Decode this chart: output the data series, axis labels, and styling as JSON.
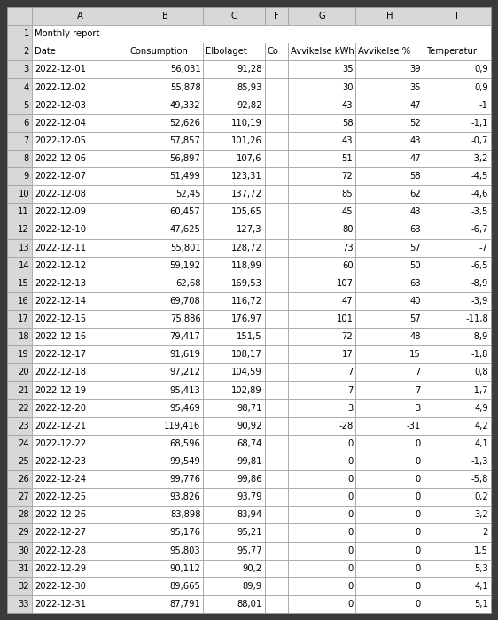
{
  "title": "Monthly report",
  "col_headers": [
    "Date",
    "Consumption",
    "Elbolaget",
    "Co",
    "Avvikelse kWh",
    "Avvikelse %",
    "Temperatur"
  ],
  "col_letters": [
    "A",
    "B",
    "C",
    "F",
    "G",
    "H",
    "I"
  ],
  "rows": [
    [
      "2022-12-01",
      "56,031",
      "91,28",
      "",
      "35",
      "39",
      "0,9"
    ],
    [
      "2022-12-02",
      "55,878",
      "85,93",
      "",
      "30",
      "35",
      "0,9"
    ],
    [
      "2022-12-03",
      "49,332",
      "92,82",
      "",
      "43",
      "47",
      "-1"
    ],
    [
      "2022-12-04",
      "52,626",
      "110,19",
      "",
      "58",
      "52",
      "-1,1"
    ],
    [
      "2022-12-05",
      "57,857",
      "101,26",
      "",
      "43",
      "43",
      "-0,7"
    ],
    [
      "2022-12-06",
      "56,897",
      "107,6",
      "",
      "51",
      "47",
      "-3,2"
    ],
    [
      "2022-12-07",
      "51,499",
      "123,31",
      "",
      "72",
      "58",
      "-4,5"
    ],
    [
      "2022-12-08",
      "52,45",
      "137,72",
      "",
      "85",
      "62",
      "-4,6"
    ],
    [
      "2022-12-09",
      "60,457",
      "105,65",
      "",
      "45",
      "43",
      "-3,5"
    ],
    [
      "2022-12-10",
      "47,625",
      "127,3",
      "",
      "80",
      "63",
      "-6,7"
    ],
    [
      "2022-12-11",
      "55,801",
      "128,72",
      "",
      "73",
      "57",
      "-7"
    ],
    [
      "2022-12-12",
      "59,192",
      "118,99",
      "",
      "60",
      "50",
      "-6,5"
    ],
    [
      "2022-12-13",
      "62,68",
      "169,53",
      "",
      "107",
      "63",
      "-8,9"
    ],
    [
      "2022-12-14",
      "69,708",
      "116,72",
      "",
      "47",
      "40",
      "-3,9"
    ],
    [
      "2022-12-15",
      "75,886",
      "176,97",
      "",
      "101",
      "57",
      "-11,8"
    ],
    [
      "2022-12-16",
      "79,417",
      "151,5",
      "",
      "72",
      "48",
      "-8,9"
    ],
    [
      "2022-12-17",
      "91,619",
      "108,17",
      "",
      "17",
      "15",
      "-1,8"
    ],
    [
      "2022-12-18",
      "97,212",
      "104,59",
      "",
      "7",
      "7",
      "0,8"
    ],
    [
      "2022-12-19",
      "95,413",
      "102,89",
      "",
      "7",
      "7",
      "-1,7"
    ],
    [
      "2022-12-20",
      "95,469",
      "98,71",
      "",
      "3",
      "3",
      "4,9"
    ],
    [
      "2022-12-21",
      "119,416",
      "90,92",
      "",
      "-28",
      "-31",
      "4,2"
    ],
    [
      "2022-12-22",
      "68,596",
      "68,74",
      "",
      "0",
      "0",
      "4,1"
    ],
    [
      "2022-12-23",
      "99,549",
      "99,81",
      "",
      "0",
      "0",
      "-1,3"
    ],
    [
      "2022-12-24",
      "99,776",
      "99,86",
      "",
      "0",
      "0",
      "-5,8"
    ],
    [
      "2022-12-25",
      "93,826",
      "93,79",
      "",
      "0",
      "0",
      "0,2"
    ],
    [
      "2022-12-26",
      "83,898",
      "83,94",
      "",
      "0",
      "0",
      "3,2"
    ],
    [
      "2022-12-27",
      "95,176",
      "95,21",
      "",
      "0",
      "0",
      "2"
    ],
    [
      "2022-12-28",
      "95,803",
      "95,77",
      "",
      "0",
      "0",
      "1,5"
    ],
    [
      "2022-12-29",
      "90,112",
      "90,2",
      "",
      "0",
      "0",
      "5,3"
    ],
    [
      "2022-12-30",
      "89,665",
      "89,9",
      "",
      "0",
      "0",
      "4,1"
    ],
    [
      "2022-12-31",
      "87,791",
      "88,01",
      "",
      "0",
      "0",
      "5,1"
    ]
  ],
  "outer_bg": "#3a3a3a",
  "cell_bg": "#ffffff",
  "grid_color": "#a0a0a0",
  "text_color": "#000000",
  "row_num_bg": "#d8d8d8",
  "col_hdr_bg": "#d8d8d8",
  "font_size": 7.2,
  "col_aligns": [
    "left",
    "right",
    "right",
    "left",
    "right",
    "right",
    "right"
  ]
}
